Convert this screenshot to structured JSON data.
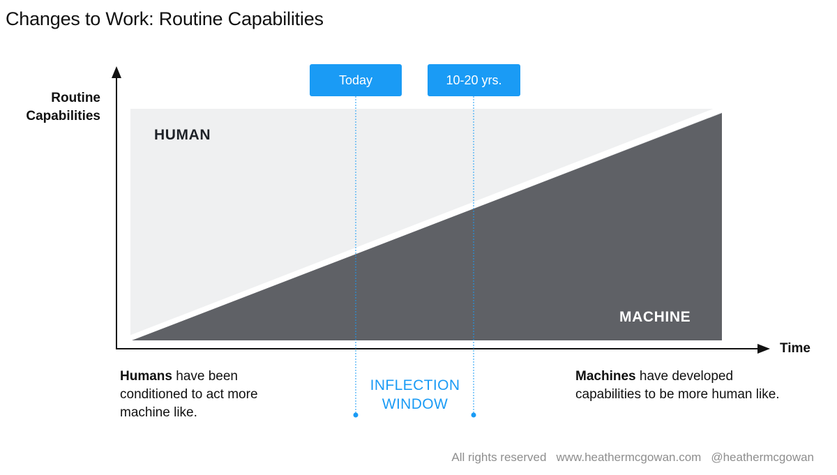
{
  "title": "Changes to Work: Routine Capabilities",
  "axes": {
    "y_label_line1": "Routine",
    "y_label_line2": "Capabilities",
    "x_label": "Time"
  },
  "regions": {
    "human": "HUMAN",
    "machine": "MACHINE"
  },
  "markers": {
    "today": "Today",
    "future": "10-20 yrs."
  },
  "captions": {
    "left_bold": "Humans",
    "left_text": " have been conditioned to act more machine like.",
    "right_bold": "Machines",
    "right_text": " have developed capabilities to be more human like.",
    "center_line1": "INFLECTION",
    "center_line2": "WINDOW"
  },
  "footer": {
    "rights": "All rights reserved",
    "website": "www.heathermcgowan.com",
    "handle": "@heathermcgowan"
  },
  "colors": {
    "human_area": "#eff0f1",
    "machine_area": "#5f6166",
    "accent_blue": "#1a9bf5",
    "axis": "#111111"
  }
}
